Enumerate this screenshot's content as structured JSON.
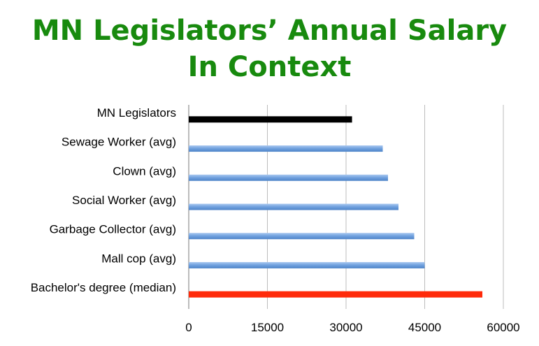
{
  "title_line1": "MN Legislators’ Annual Salary",
  "title_line2": "In Context",
  "chart_data": {
    "type": "bar",
    "orientation": "horizontal",
    "title": "MN Legislators’ Annual Salary In Context",
    "categories": [
      "MN Legislators",
      "Sewage Worker (avg)",
      "Clown (avg)",
      "Social Worker (avg)",
      "Garbage Collector (avg)",
      "Mall cop (avg)",
      "Bachelor's degree (median)"
    ],
    "values": [
      31141,
      37000,
      38000,
      40000,
      43000,
      45000,
      56000
    ],
    "bar_colors": [
      "#000000",
      "#6fa0de",
      "#6fa0de",
      "#6fa0de",
      "#6fa0de",
      "#6fa0de",
      "#ff2a0a"
    ],
    "xticks": [
      "0",
      "15000",
      "30000",
      "45000",
      "60000"
    ],
    "xlim": [
      0,
      60000
    ],
    "grid": "vertical",
    "legend": "none",
    "xlabel": "",
    "ylabel": ""
  }
}
